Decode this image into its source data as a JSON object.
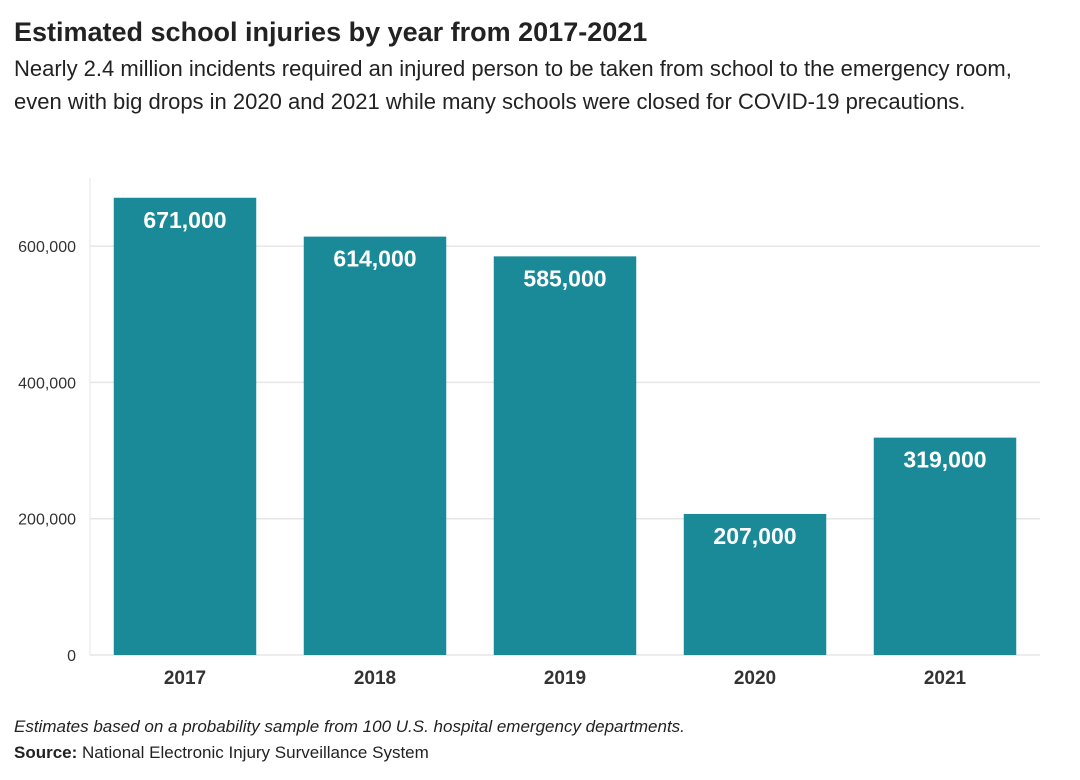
{
  "header": {
    "title": "Estimated school injuries by year from 2017-2021",
    "subtitle": "Nearly 2.4 million incidents required an injured person to be taken from school to the emergency room, even with big drops in 2020 and 2021 while many schools were closed for COVID-19 precautions."
  },
  "footer": {
    "note": "Estimates based on a probability sample from 100 U.S. hospital emergency departments.",
    "source_label": "Source:",
    "source_text": "National Electronic Injury Surveillance System"
  },
  "chart_data": {
    "type": "bar",
    "title": "Estimated school injuries by year from 2017-2021",
    "subtitle": "Nearly 2.4 million incidents required an injured person to be taken from school to the emergency room, even with big drops in 2020 and 2021 while many schools were closed for COVID-19 precautions.",
    "categories": [
      "2017",
      "2018",
      "2019",
      "2020",
      "2021"
    ],
    "values": [
      671000,
      614000,
      585000,
      207000,
      319000
    ],
    "data_labels": [
      "671,000",
      "614,000",
      "585,000",
      "207,000",
      "319,000"
    ],
    "yticks": [
      0,
      200000,
      400000,
      600000
    ],
    "ytick_labels": [
      "0",
      "200,000",
      "400,000",
      "600,000"
    ],
    "ylim": [
      0,
      700000
    ],
    "xlabel": "",
    "ylabel": "",
    "grid": true,
    "legend": "none",
    "bar_color": "#1a8a99",
    "label_color": "#ffffff",
    "grid_color": "#e6e6e6"
  }
}
